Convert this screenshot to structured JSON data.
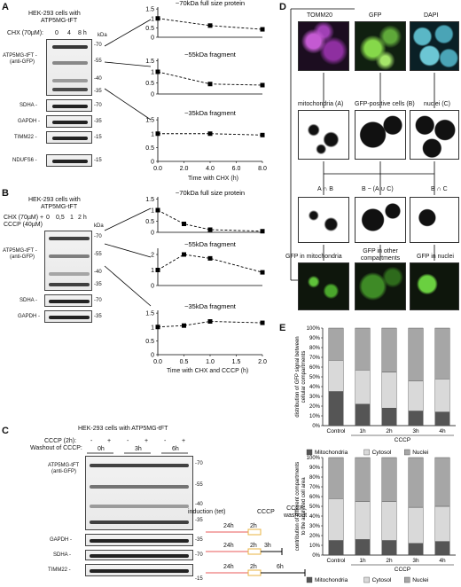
{
  "panels": {
    "A": {
      "label": "A",
      "cells": "HEK-293 cells with",
      "construct": "ATP5MG-tFT",
      "chx_label": "CHX (70µM):",
      "times": [
        "0",
        "4",
        "8 h"
      ],
      "kda": "kDa",
      "blots": [
        {
          "name": "ATP5MG-tFT -",
          "sub": "(anti-GFP)",
          "markers": [
            "-70",
            "-55",
            "-40",
            "-35"
          ]
        },
        {
          "name": "SDHA -",
          "markers": [
            "-70"
          ]
        },
        {
          "name": "GAPDH -",
          "markers": [
            "-35"
          ]
        },
        {
          "name": "TIMM22 -",
          "markers": [
            "-15"
          ]
        },
        {
          "name": "NDUFS6 -",
          "markers": [
            "-15"
          ]
        }
      ],
      "graphs": [
        {
          "title": "~70kDa full size protein",
          "x": [
            0,
            4,
            8
          ],
          "y": [
            1.0,
            0.62,
            0.42
          ],
          "yticks": [
            0,
            0.5,
            1,
            1.5
          ],
          "ymax": 1.6
        },
        {
          "title": "~55kDa fragment",
          "x": [
            0,
            4,
            8
          ],
          "y": [
            1.0,
            0.45,
            0.4
          ],
          "yticks": [
            0,
            0.5,
            1,
            1.5
          ],
          "ymax": 1.6
        },
        {
          "title": "~35kDa fragment",
          "x": [
            0,
            4,
            8
          ],
          "y": [
            1.0,
            1.0,
            0.95
          ],
          "yticks": [
            0,
            0.5,
            1,
            1.5
          ],
          "ymax": 1.6
        }
      ],
      "xticks": [
        "0.0",
        "2.0",
        "4.0",
        "6.0",
        "8.0"
      ],
      "xlabel": "Time with CHX (h)"
    },
    "B": {
      "label": "B",
      "cells": "HEK-293 cells with",
      "construct": "ATP5MG-tFT",
      "chx_label": "CHX (70µM) +",
      "cccp_label": "CCCP (40µM)",
      "times": [
        "0",
        "0,5",
        "1",
        "2 h"
      ],
      "kda": "kDa",
      "blots": [
        {
          "name": "ATP5MG-tFT -",
          "sub": "(anti-GFP)",
          "markers": [
            "-70",
            "-55",
            "-40",
            "-35"
          ]
        },
        {
          "name": "SDHA -",
          "markers": [
            "-70"
          ]
        },
        {
          "name": "GAPDH -",
          "markers": [
            "-35"
          ]
        }
      ],
      "graphs": [
        {
          "title": "~70kDa full size protein",
          "x": [
            0,
            0.5,
            1,
            2
          ],
          "y": [
            1.0,
            0.38,
            0.12,
            0.05
          ],
          "yticks": [
            0,
            0.5,
            1,
            1.5
          ],
          "ymax": 1.6
        },
        {
          "title": "~55kDa fragment",
          "x": [
            0,
            0.5,
            1,
            2
          ],
          "y": [
            1.0,
            2.0,
            1.75,
            0.85
          ],
          "yticks": [
            0,
            1,
            2
          ],
          "ymax": 2.4
        },
        {
          "title": "~35kDa fragment",
          "x": [
            0,
            0.5,
            1,
            2
          ],
          "y": [
            1.0,
            1.05,
            1.2,
            1.15
          ],
          "yticks": [
            0,
            0.5,
            1,
            1.5
          ],
          "ymax": 1.6
        }
      ],
      "xticks": [
        "0.0",
        "0.5",
        "1.0",
        "1.5",
        "2.0"
      ],
      "xlabel": "Time with CHX and CCCP (h)"
    },
    "C": {
      "label": "C",
      "cells": "HEK-293 cells with ATP5MG-tFT",
      "cccp_label": "CCCP (2h):",
      "washout_label": "Washout of CCCP:",
      "cccp_signs": [
        "-",
        "+",
        "-",
        "+",
        "-",
        "+"
      ],
      "washout_times": [
        "0h",
        "3h",
        "6h"
      ],
      "blots": [
        {
          "name": "ATP5MG-tFT",
          "sub": "(anti-GFP)",
          "markers": [
            "-70",
            "-55",
            "-40",
            "-35"
          ]
        },
        {
          "name": "GAPDH -",
          "markers": [
            "-35"
          ]
        },
        {
          "name": "SDHA -",
          "markers": [
            "-70"
          ]
        },
        {
          "name": "TIMM22 -",
          "markers": [
            "-15"
          ]
        }
      ],
      "timeline": {
        "headers": [
          "induction (tet)",
          "CCCP",
          "CCCP washout"
        ],
        "rows": [
          {
            "a": "24h",
            "b": "2h",
            "c": ""
          },
          {
            "a": "24h",
            "b": "2h",
            "c": "3h"
          },
          {
            "a": "24h",
            "b": "2h",
            "c": "6h"
          }
        ]
      }
    },
    "D": {
      "label": "D",
      "top": [
        "TOMM20",
        "GFP",
        "DAPI"
      ],
      "mid": [
        "mitochondria (A)",
        "GFP-positive cells (B)",
        "nuclei (C)"
      ],
      "ops": [
        "A ∩ B",
        "B − (A ∪ C)",
        "B ∩ C"
      ],
      "bottom": [
        "GFP in mitochondria",
        "GFP in other compartments",
        "GFP in nuclei"
      ]
    },
    "E": {
      "label": "E",
      "legend": [
        "Mitochondria",
        "Cytosol",
        "Nuclei"
      ]
    }
  },
  "chart_data": [
    {
      "type": "bar",
      "stacked": true,
      "categories": [
        "Control",
        "1h",
        "2h",
        "3h",
        "4h"
      ],
      "group_label": "CCCP",
      "ylabel": "distribution of GFP signal between cellular compartments",
      "yticks": [
        "0%",
        "10%",
        "20%",
        "30%",
        "40%",
        "50%",
        "60%",
        "70%",
        "80%",
        "90%",
        "100%"
      ],
      "series": [
        {
          "name": "Mitochondria",
          "values": [
            35,
            22,
            18,
            15,
            14
          ],
          "color": "#555555"
        },
        {
          "name": "Cytosol",
          "values": [
            32,
            35,
            37,
            31,
            34
          ],
          "color": "#d9d9d9"
        },
        {
          "name": "Nuclei",
          "values": [
            33,
            43,
            45,
            54,
            52
          ],
          "color": "#a6a6a6"
        }
      ]
    },
    {
      "type": "bar",
      "stacked": true,
      "categories": [
        "Control",
        "1h",
        "2h",
        "3h",
        "4h"
      ],
      "group_label": "CCCP",
      "ylabel": "contribution of different compartments to the analyzed cell area",
      "yticks": [
        "0%",
        "10%",
        "20%",
        "30%",
        "40%",
        "50%",
        "60%",
        "70%",
        "80%",
        "90%",
        "100%"
      ],
      "series": [
        {
          "name": "Mitochondria",
          "values": [
            15,
            16,
            15,
            12,
            14
          ],
          "color": "#555555"
        },
        {
          "name": "Cytosol",
          "values": [
            43,
            39,
            40,
            37,
            36
          ],
          "color": "#d9d9d9"
        },
        {
          "name": "Nuclei",
          "values": [
            42,
            45,
            45,
            51,
            50
          ],
          "color": "#a6a6a6"
        }
      ]
    }
  ]
}
